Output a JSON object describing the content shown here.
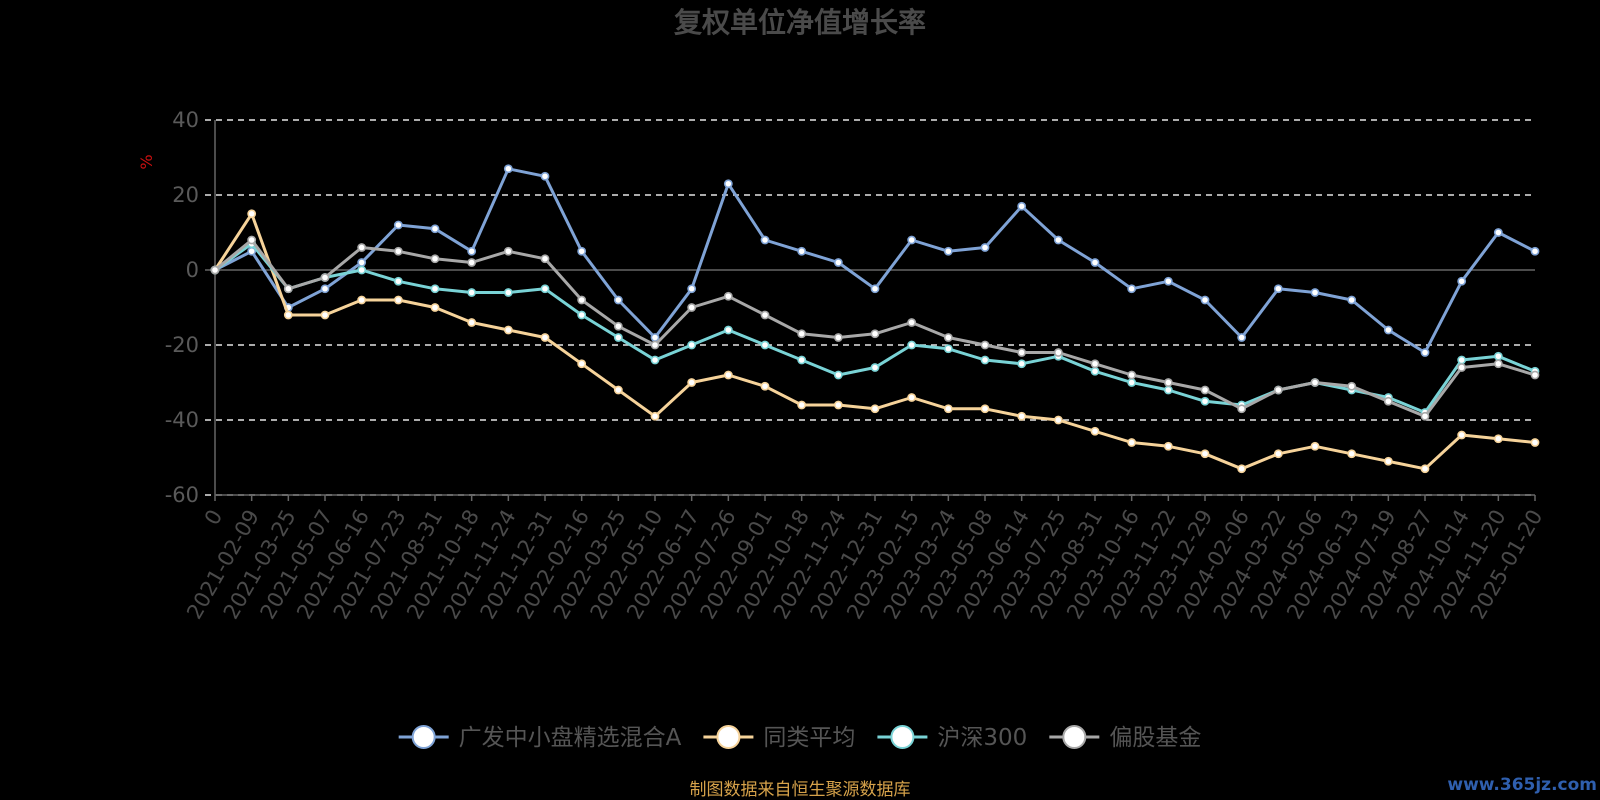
{
  "chart_data": {
    "type": "line",
    "title": "复权单位净值增长率",
    "ylabel": "%",
    "xlabel": "",
    "ylim": [
      -60,
      40
    ],
    "yticks": [
      40,
      20,
      0,
      -20,
      -40,
      -60
    ],
    "grid": "horizontal dashed",
    "legend_position": "bottom",
    "x": [
      "0",
      "2021-02-09",
      "2021-03-25",
      "2021-05-07",
      "2021-06-16",
      "2021-07-23",
      "2021-08-31",
      "2021-10-18",
      "2021-11-24",
      "2021-12-31",
      "2022-02-16",
      "2022-03-25",
      "2022-05-10",
      "2022-06-17",
      "2022-07-26",
      "2022-09-01",
      "2022-10-18",
      "2022-11-24",
      "2022-12-31",
      "2023-02-15",
      "2023-03-24",
      "2023-05-08",
      "2023-06-14",
      "2023-07-25",
      "2023-08-31",
      "2023-10-16",
      "2023-11-22",
      "2023-12-29",
      "2024-02-06",
      "2024-03-22",
      "2024-05-06",
      "2024-06-13",
      "2024-07-19",
      "2024-08-27",
      "2024-10-14",
      "2024-11-20",
      "2025-01-20"
    ],
    "series": [
      {
        "name": "广发中小盘精选混合A",
        "color": "#7fa3d6",
        "values": [
          0,
          5,
          -10,
          -5,
          2,
          12,
          11,
          5,
          27,
          25,
          5,
          -8,
          -18,
          -5,
          23,
          8,
          5,
          2,
          -5,
          8,
          5,
          6,
          17,
          8,
          2,
          -5,
          -3,
          -8,
          -18,
          -5,
          -6,
          -8,
          -16,
          -22,
          -3,
          10,
          5
        ]
      },
      {
        "name": "同类平均",
        "color": "#f6d39a",
        "values": [
          0,
          15,
          -12,
          -12,
          -8,
          -8,
          -10,
          -14,
          -16,
          -18,
          -25,
          -32,
          -39,
          -30,
          -28,
          -31,
          -36,
          -36,
          -37,
          -34,
          -37,
          -37,
          -39,
          -40,
          -43,
          -46,
          -47,
          -49,
          -53,
          -49,
          -47,
          -49,
          -51,
          -53,
          -44,
          -45,
          -46
        ]
      },
      {
        "name": "沪深300",
        "color": "#79d3d6",
        "values": [
          0,
          7,
          -5,
          -2,
          0,
          -3,
          -5,
          -6,
          -6,
          -5,
          -12,
          -18,
          -24,
          -20,
          -16,
          -20,
          -24,
          -28,
          -26,
          -20,
          -21,
          -24,
          -25,
          -23,
          -27,
          -30,
          -32,
          -35,
          -36,
          -32,
          -30,
          -32,
          -34,
          -38,
          -24,
          -23,
          -27
        ]
      },
      {
        "name": "偏股基金",
        "color": "#a8a8a8",
        "values": [
          0,
          8,
          -5,
          -2,
          6,
          5,
          3,
          2,
          5,
          3,
          -8,
          -15,
          -20,
          -10,
          -7,
          -12,
          -17,
          -18,
          -17,
          -14,
          -18,
          -20,
          -22,
          -22,
          -25,
          -28,
          -30,
          -32,
          -37,
          -32,
          -30,
          -31,
          -35,
          -39,
          -26,
          -25,
          -28
        ]
      }
    ]
  },
  "legend": {
    "items": [
      {
        "label": "广发中小盘精选混合A",
        "color": "#7fa3d6"
      },
      {
        "label": "同类平均",
        "color": "#f6d39a"
      },
      {
        "label": "沪深300",
        "color": "#79d3d6"
      },
      {
        "label": "偏股基金",
        "color": "#a8a8a8"
      }
    ]
  },
  "footer": {
    "source": "制图数据来自恒生聚源数据库",
    "watermark": "www.365jz.com"
  }
}
